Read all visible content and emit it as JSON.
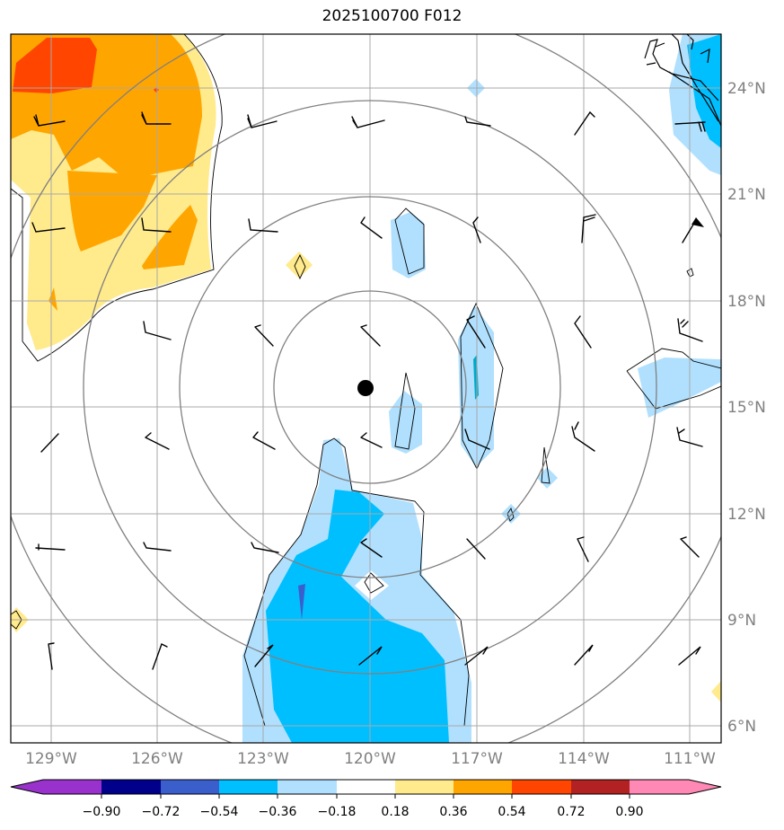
{
  "title": "2025100700 F012",
  "map": {
    "lon_labels": [
      "129°W",
      "126°W",
      "123°W",
      "120°W",
      "117°W",
      "114°W",
      "111°W"
    ],
    "lat_labels": [
      "24°N",
      "21°N",
      "18°N",
      "15°N",
      "12°N",
      "9°N",
      "6°N"
    ],
    "storm_center": {
      "lon": -120.0,
      "lat": 15.5
    }
  },
  "colorbar": {
    "tick_labels": [
      "−0.90",
      "−0.72",
      "−0.54",
      "−0.36",
      "−0.18",
      "0.18",
      "0.36",
      "0.54",
      "0.72",
      "0.90"
    ],
    "colors": [
      "#9932cc",
      "#00008b",
      "#3a5fcd",
      "#00bfff",
      "#b0e0fe",
      "#ffffff",
      "#ffea8c",
      "#ffa500",
      "#ff4500",
      "#b22222",
      "#ff88b4"
    ]
  }
}
